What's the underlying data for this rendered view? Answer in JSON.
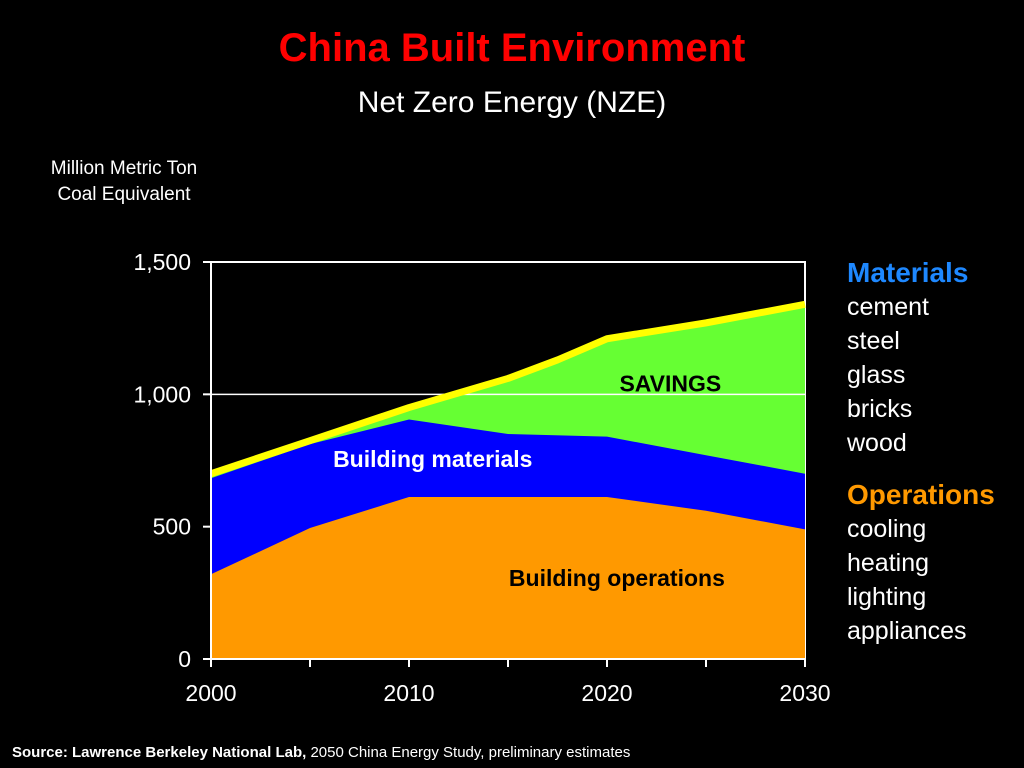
{
  "title": "China Built Environment",
  "subtitle": "Net Zero Energy (NZE)",
  "ylabel_line1": "Million Metric Ton",
  "ylabel_line2": "Coal Equivalent",
  "legend": {
    "materials": {
      "title": "Materials",
      "color": "#1e88ff",
      "items": [
        "cement",
        "steel",
        "glass",
        "bricks",
        "wood"
      ]
    },
    "operations": {
      "title": "Operations",
      "color": "#ff9900",
      "items": [
        "cooling",
        "heating",
        "lighting",
        "appliances"
      ]
    }
  },
  "source": {
    "label": "Source:  Lawrence Berkeley National Lab,",
    "text": " 2050 China Energy Study, preliminary estimates"
  },
  "chart_data": {
    "type": "area",
    "xlim": [
      2000,
      2030
    ],
    "ylim": [
      0,
      1500
    ],
    "x_ticks": [
      {
        "value": 2000,
        "label": "2000"
      },
      {
        "value": 2010,
        "label": "2010"
      },
      {
        "value": 2020,
        "label": "2020"
      },
      {
        "value": 2030,
        "label": "2030"
      }
    ],
    "y_ticks": [
      {
        "value": 0,
        "label": "0"
      },
      {
        "value": 500,
        "label": "500"
      },
      {
        "value": 1000,
        "label": "1,000"
      },
      {
        "value": 1500,
        "label": "1,500"
      }
    ],
    "grid": "horizontal at 1,000",
    "stacked": true,
    "series": [
      {
        "name": "Building operations",
        "color": "#ff9900",
        "points": [
          [
            2000,
            320
          ],
          [
            2005,
            495
          ],
          [
            2010,
            612
          ],
          [
            2015,
            612
          ],
          [
            2020,
            612
          ],
          [
            2025,
            560
          ],
          [
            2030,
            490
          ]
        ]
      },
      {
        "name": "Building materials",
        "color": "#0000ff",
        "points": [
          [
            2000,
            683
          ],
          [
            2005,
            812
          ],
          [
            2010,
            905
          ],
          [
            2015,
            850
          ],
          [
            2020,
            840
          ],
          [
            2025,
            770
          ],
          [
            2030,
            700
          ]
        ]
      },
      {
        "name": "SAVINGS",
        "color": "#66ff33",
        "points": [
          [
            2000,
            700
          ],
          [
            2005,
            825
          ],
          [
            2010,
            950
          ],
          [
            2015,
            1060
          ],
          [
            2017.5,
            1130
          ],
          [
            2020,
            1210
          ],
          [
            2025,
            1270
          ],
          [
            2030,
            1340
          ]
        ]
      }
    ],
    "baseline": {
      "color": "#ffff00",
      "points": [
        [
          2000,
          700
        ],
        [
          2005,
          825
        ],
        [
          2010,
          950
        ],
        [
          2015,
          1060
        ],
        [
          2017.5,
          1130
        ],
        [
          2020,
          1210
        ],
        [
          2025,
          1270
        ],
        [
          2030,
          1340
        ]
      ]
    },
    "annotations": [
      {
        "text": "SAVINGS",
        "x": 2023.2,
        "y": 1010,
        "color": "#000000"
      },
      {
        "text": "Building materials",
        "x": 2011.2,
        "y": 725,
        "color": "#ffffff"
      },
      {
        "text": "Building operations",
        "x": 2020.5,
        "y": 275,
        "color": "#000000"
      }
    ]
  }
}
